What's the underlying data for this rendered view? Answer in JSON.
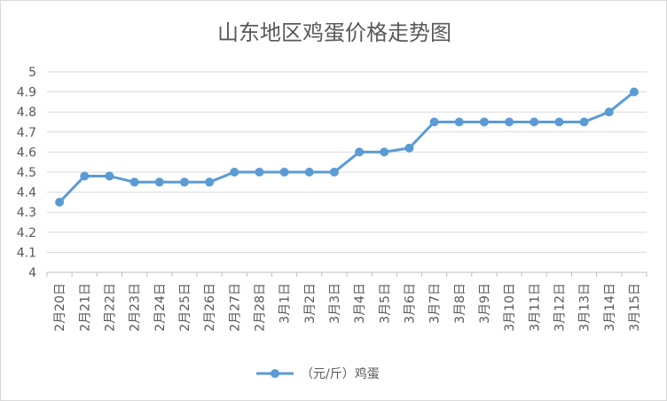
{
  "chart_data": {
    "type": "line",
    "title": "山东地区鸡蛋价格走势图",
    "xlabel": "",
    "ylabel": "",
    "categories": [
      "2月20日",
      "2月21日",
      "2月22日",
      "2月23日",
      "2月24日",
      "2月25日",
      "2月26日",
      "2月27日",
      "2月28日",
      "3月1日",
      "3月2日",
      "3月3日",
      "3月4日",
      "3月5日",
      "3月6日",
      "3月7日",
      "3月8日",
      "3月9日",
      "3月10日",
      "3月11日",
      "3月12日",
      "3月13日",
      "3月14日",
      "3月15日"
    ],
    "series": [
      {
        "name": "（元/斤）鸡蛋",
        "color": "#5b9bd5",
        "values": [
          4.35,
          4.48,
          4.48,
          4.45,
          4.45,
          4.45,
          4.45,
          4.5,
          4.5,
          4.5,
          4.5,
          4.5,
          4.6,
          4.6,
          4.62,
          4.75,
          4.75,
          4.75,
          4.75,
          4.75,
          4.75,
          4.75,
          4.8,
          4.9
        ]
      }
    ],
    "ylim": [
      4,
      5
    ],
    "yticks": [
      "4",
      "4.1",
      "4.2",
      "4.3",
      "4.4",
      "4.5",
      "4.6",
      "4.7",
      "4.8",
      "4.9",
      "5"
    ],
    "grid": true,
    "legend_position": "bottom"
  }
}
